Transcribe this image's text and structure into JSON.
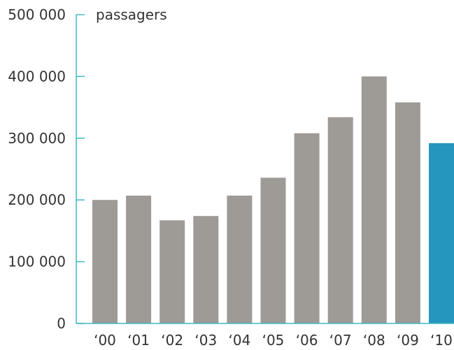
{
  "chart_data": {
    "type": "bar",
    "title": "",
    "ylabel": "passagers",
    "xlabel": "",
    "categories": [
      "‘00",
      "‘01",
      "‘02",
      "‘03",
      "‘04",
      "‘05",
      "‘06",
      "‘07",
      "‘08",
      "‘09",
      "‘10"
    ],
    "values": [
      200000,
      207000,
      167000,
      174000,
      207000,
      236000,
      308000,
      334000,
      400000,
      358000,
      292000
    ],
    "ylim": [
      0,
      500000
    ],
    "yticks": [
      0,
      100000,
      200000,
      300000,
      400000,
      500000
    ],
    "ytick_labels": [
      "0",
      "100 000",
      "200 000",
      "300 000",
      "400 000",
      "500 000"
    ],
    "grid": false,
    "legend": "none",
    "colors": {
      "bar": "#9e9a96",
      "highlight": "#2596be",
      "axis": "#3fb8c0",
      "text": "#333333"
    },
    "highlight_index": 10
  }
}
